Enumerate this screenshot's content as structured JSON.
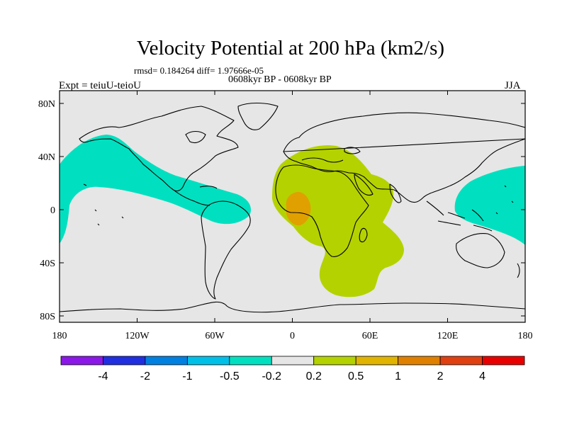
{
  "title": "Velocity Potential at 200 hPa (km2/s)",
  "stats": "rmsd= 0.184264 diff= 1.97666e-05",
  "left_label": "Expt = teiuU-teioU",
  "center_label": "0608kyr BP - 0608kyr BP",
  "right_label": "JJA",
  "map": {
    "lat_ticks": [
      {
        "value": 80,
        "label": "80N"
      },
      {
        "value": 40,
        "label": "40N"
      },
      {
        "value": 0,
        "label": "0"
      },
      {
        "value": -40,
        "label": "40S"
      },
      {
        "value": -80,
        "label": "80S"
      }
    ],
    "lon_ticks": [
      {
        "value": -180,
        "label": "180"
      },
      {
        "value": -120,
        "label": "120W"
      },
      {
        "value": -60,
        "label": "60W"
      },
      {
        "value": 0,
        "label": "0"
      },
      {
        "value": 60,
        "label": "60E"
      },
      {
        "value": 120,
        "label": "120E"
      },
      {
        "value": 180,
        "label": "180"
      }
    ],
    "background_color": "#e6e6e6",
    "regions": [
      {
        "name": "negative-pacific-atlantic",
        "category": "-0.5 to -0.2",
        "color": "#00e0c0"
      },
      {
        "name": "negative-west-pacific",
        "category": "-0.5 to -0.2",
        "color": "#00e0c0"
      },
      {
        "name": "positive-africa-indian-ocean",
        "category": "0.2 to 0.5",
        "color": "#b4d200"
      },
      {
        "name": "positive-gulf-of-guinea-core",
        "category": "0.5 to 1",
        "color": "#e0a000"
      }
    ]
  },
  "colorbar": {
    "colors": [
      "#8c18e8",
      "#2030e0",
      "#0080e0",
      "#00c0e8",
      "#00e0c0",
      "#e6e6e6",
      "#b4d200",
      "#e0b400",
      "#e08000",
      "#e04010",
      "#e80000"
    ],
    "labels": [
      "-4",
      "-2",
      "-1",
      "-0.5",
      "-0.2",
      "0.2",
      "0.5",
      "1",
      "2",
      "4"
    ]
  }
}
